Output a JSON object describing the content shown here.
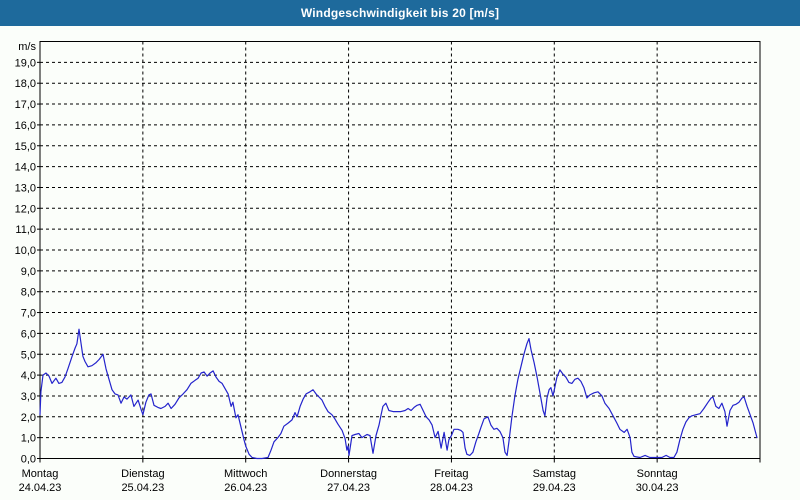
{
  "window": {
    "title": "Windgeschwindigkeit bis 20 [m/s]"
  },
  "colors": {
    "frame_blue": "#1e6a9c",
    "content_bg": "#fbfefa",
    "plot_border": "#000000",
    "grid": "#000000",
    "line": "#2424cc",
    "label_text": "#000000",
    "title_text": "#ffffff"
  },
  "chart_data": {
    "type": "line",
    "title": "Windgeschwindigkeit bis 20 [m/s]",
    "y_unit_label": "m/s",
    "ylim": [
      0,
      20
    ],
    "y_tick_step": 1,
    "y_tick_labels": [
      "19,0",
      "18,0",
      "17,0",
      "16,0",
      "15,0",
      "14,0",
      "13,0",
      "12,0",
      "11,0",
      "10,0",
      "9,0",
      "8,0",
      "7,0",
      "6,0",
      "5,0",
      "4,0",
      "3,0",
      "2,0",
      "1,0",
      "0,0"
    ],
    "x_unit": "hours_since_monday_00h",
    "xlim_hours": [
      0,
      168
    ],
    "grid": "dashed",
    "legend": "none",
    "x_day_labels": [
      {
        "name": "Montag",
        "date": "24.04.23",
        "hour": 0
      },
      {
        "name": "Dienstag",
        "date": "25.04.23",
        "hour": 24
      },
      {
        "name": "Mittwoch",
        "date": "26.04.23",
        "hour": 48
      },
      {
        "name": "Donnerstag",
        "date": "27.04.23",
        "hour": 72
      },
      {
        "name": "Freitag",
        "date": "28.04.23",
        "hour": 96
      },
      {
        "name": "Samstag",
        "date": "29.04.23",
        "hour": 120
      },
      {
        "name": "Sonntag",
        "date": "30.04.23",
        "hour": 144
      }
    ],
    "series": [
      {
        "name": "Windgeschwindigkeit [m/s]",
        "points": [
          [
            0.0,
            2.1
          ],
          [
            0.2,
            3.2
          ],
          [
            0.7,
            4.0
          ],
          [
            1.4,
            4.1
          ],
          [
            2.1,
            3.95
          ],
          [
            2.8,
            3.6
          ],
          [
            3.7,
            3.85
          ],
          [
            4.4,
            3.6
          ],
          [
            5.1,
            3.65
          ],
          [
            5.8,
            3.9
          ],
          [
            6.5,
            4.3
          ],
          [
            7.5,
            4.9
          ],
          [
            8.2,
            5.3
          ],
          [
            8.6,
            5.5
          ],
          [
            9.1,
            6.2
          ],
          [
            9.6,
            5.5
          ],
          [
            10.0,
            4.9
          ],
          [
            10.5,
            4.65
          ],
          [
            11.2,
            4.4
          ],
          [
            12.1,
            4.45
          ],
          [
            13.1,
            4.6
          ],
          [
            13.8,
            4.75
          ],
          [
            14.7,
            5.0
          ],
          [
            15.4,
            4.3
          ],
          [
            16.1,
            3.8
          ],
          [
            16.8,
            3.3
          ],
          [
            17.5,
            3.1
          ],
          [
            18.2,
            3.05
          ],
          [
            18.9,
            2.65
          ],
          [
            19.6,
            2.95
          ],
          [
            20.3,
            2.85
          ],
          [
            21.2,
            3.05
          ],
          [
            21.9,
            2.5
          ],
          [
            22.9,
            2.8
          ],
          [
            23.6,
            2.35
          ],
          [
            24.0,
            2.1
          ],
          [
            24.7,
            2.7
          ],
          [
            25.4,
            3.05
          ],
          [
            25.9,
            3.1
          ],
          [
            26.6,
            2.55
          ],
          [
            27.5,
            2.45
          ],
          [
            28.2,
            2.4
          ],
          [
            29.2,
            2.5
          ],
          [
            29.9,
            2.65
          ],
          [
            30.6,
            2.4
          ],
          [
            31.5,
            2.6
          ],
          [
            32.4,
            2.9
          ],
          [
            33.4,
            3.1
          ],
          [
            34.3,
            3.3
          ],
          [
            35.2,
            3.6
          ],
          [
            36.2,
            3.75
          ],
          [
            36.9,
            3.85
          ],
          [
            37.6,
            4.1
          ],
          [
            38.3,
            4.15
          ],
          [
            39.0,
            3.95
          ],
          [
            39.7,
            4.1
          ],
          [
            40.4,
            4.2
          ],
          [
            41.1,
            3.9
          ],
          [
            41.8,
            3.7
          ],
          [
            42.5,
            3.6
          ],
          [
            43.2,
            3.35
          ],
          [
            43.9,
            3.1
          ],
          [
            44.6,
            2.5
          ],
          [
            45.0,
            2.7
          ],
          [
            45.7,
            1.95
          ],
          [
            46.2,
            2.1
          ],
          [
            46.9,
            1.5
          ],
          [
            47.6,
            0.9
          ],
          [
            48.0,
            0.6
          ],
          [
            48.8,
            0.2
          ],
          [
            49.5,
            0.05
          ],
          [
            50.6,
            0.0
          ],
          [
            51.8,
            0.0
          ],
          [
            53.2,
            0.05
          ],
          [
            53.9,
            0.4
          ],
          [
            54.6,
            0.8
          ],
          [
            55.5,
            1.0
          ],
          [
            56.2,
            1.2
          ],
          [
            56.9,
            1.55
          ],
          [
            57.9,
            1.7
          ],
          [
            58.8,
            1.85
          ],
          [
            59.5,
            2.2
          ],
          [
            60.0,
            2.0
          ],
          [
            60.7,
            2.5
          ],
          [
            61.4,
            2.85
          ],
          [
            62.1,
            3.1
          ],
          [
            63.0,
            3.2
          ],
          [
            63.7,
            3.3
          ],
          [
            64.4,
            3.1
          ],
          [
            65.1,
            2.95
          ],
          [
            65.8,
            2.8
          ],
          [
            66.5,
            2.5
          ],
          [
            67.2,
            2.25
          ],
          [
            68.1,
            2.1
          ],
          [
            68.8,
            1.9
          ],
          [
            69.5,
            1.65
          ],
          [
            70.5,
            1.35
          ],
          [
            71.2,
            0.95
          ],
          [
            71.6,
            0.4
          ],
          [
            71.9,
            0.6
          ],
          [
            72.1,
            0.15
          ],
          [
            72.8,
            1.1
          ],
          [
            73.5,
            1.15
          ],
          [
            74.4,
            1.2
          ],
          [
            75.1,
            1.0
          ],
          [
            76.3,
            1.15
          ],
          [
            77.0,
            1.1
          ],
          [
            77.7,
            0.25
          ],
          [
            78.4,
            1.1
          ],
          [
            79.1,
            1.6
          ],
          [
            79.6,
            2.1
          ],
          [
            80.0,
            2.5
          ],
          [
            80.7,
            2.65
          ],
          [
            81.4,
            2.3
          ],
          [
            82.4,
            2.25
          ],
          [
            83.3,
            2.25
          ],
          [
            84.2,
            2.25
          ],
          [
            85.2,
            2.3
          ],
          [
            85.9,
            2.4
          ],
          [
            86.6,
            2.3
          ],
          [
            87.3,
            2.45
          ],
          [
            88.0,
            2.55
          ],
          [
            88.7,
            2.6
          ],
          [
            89.4,
            2.3
          ],
          [
            90.1,
            2.0
          ],
          [
            90.8,
            1.85
          ],
          [
            91.5,
            1.6
          ],
          [
            92.2,
            1.0
          ],
          [
            92.9,
            1.3
          ],
          [
            93.6,
            0.5
          ],
          [
            94.3,
            1.25
          ],
          [
            95.0,
            0.4
          ],
          [
            95.4,
            0.9
          ],
          [
            96.0,
            1.1
          ],
          [
            96.6,
            1.4
          ],
          [
            97.5,
            1.4
          ],
          [
            98.2,
            1.35
          ],
          [
            98.7,
            1.25
          ],
          [
            99.2,
            0.5
          ],
          [
            99.6,
            0.2
          ],
          [
            100.3,
            0.15
          ],
          [
            101.0,
            0.3
          ],
          [
            101.7,
            0.8
          ],
          [
            102.4,
            1.2
          ],
          [
            102.9,
            1.5
          ],
          [
            103.6,
            1.9
          ],
          [
            104.5,
            2.0
          ],
          [
            105.2,
            1.6
          ],
          [
            105.9,
            1.4
          ],
          [
            106.6,
            1.45
          ],
          [
            107.3,
            1.3
          ],
          [
            108.0,
            1.0
          ],
          [
            108.5,
            0.3
          ],
          [
            109.0,
            0.15
          ],
          [
            109.4,
            0.8
          ],
          [
            110.1,
            2.0
          ],
          [
            110.8,
            3.0
          ],
          [
            111.5,
            3.8
          ],
          [
            112.2,
            4.4
          ],
          [
            112.9,
            5.0
          ],
          [
            113.6,
            5.5
          ],
          [
            114.1,
            5.75
          ],
          [
            114.6,
            5.2
          ],
          [
            115.3,
            4.6
          ],
          [
            116.0,
            3.9
          ],
          [
            116.7,
            3.1
          ],
          [
            117.4,
            2.3
          ],
          [
            117.8,
            2.05
          ],
          [
            118.3,
            2.9
          ],
          [
            118.8,
            3.3
          ],
          [
            119.2,
            3.4
          ],
          [
            119.7,
            3.0
          ],
          [
            120.0,
            3.3
          ],
          [
            120.6,
            3.9
          ],
          [
            121.3,
            4.25
          ],
          [
            122.0,
            4.05
          ],
          [
            122.7,
            3.9
          ],
          [
            123.4,
            3.65
          ],
          [
            124.1,
            3.6
          ],
          [
            124.8,
            3.8
          ],
          [
            125.5,
            3.85
          ],
          [
            126.2,
            3.7
          ],
          [
            126.9,
            3.4
          ],
          [
            127.6,
            2.9
          ],
          [
            128.3,
            3.05
          ],
          [
            129.3,
            3.15
          ],
          [
            130.2,
            3.2
          ],
          [
            131.1,
            3.0
          ],
          [
            131.8,
            2.65
          ],
          [
            132.8,
            2.4
          ],
          [
            133.7,
            2.05
          ],
          [
            134.6,
            1.7
          ],
          [
            135.3,
            1.4
          ],
          [
            136.3,
            1.25
          ],
          [
            137.0,
            1.4
          ],
          [
            137.7,
            1.0
          ],
          [
            138.1,
            0.3
          ],
          [
            138.6,
            0.1
          ],
          [
            140.0,
            0.05
          ],
          [
            141.2,
            0.15
          ],
          [
            142.3,
            0.05
          ],
          [
            144.0,
            0.05
          ],
          [
            145.1,
            0.05
          ],
          [
            146.1,
            0.15
          ],
          [
            147.0,
            0.05
          ],
          [
            147.9,
            0.05
          ],
          [
            148.6,
            0.3
          ],
          [
            149.3,
            0.9
          ],
          [
            150.0,
            1.4
          ],
          [
            150.7,
            1.75
          ],
          [
            151.4,
            1.95
          ],
          [
            152.1,
            2.05
          ],
          [
            153.1,
            2.1
          ],
          [
            154.0,
            2.15
          ],
          [
            154.9,
            2.4
          ],
          [
            155.9,
            2.7
          ],
          [
            156.6,
            2.9
          ],
          [
            157.0,
            2.95
          ],
          [
            157.7,
            2.5
          ],
          [
            158.4,
            2.4
          ],
          [
            159.1,
            2.65
          ],
          [
            159.8,
            2.25
          ],
          [
            160.3,
            1.55
          ],
          [
            161.0,
            2.3
          ],
          [
            161.7,
            2.55
          ],
          [
            162.4,
            2.6
          ],
          [
            163.1,
            2.7
          ],
          [
            163.8,
            2.9
          ],
          [
            164.3,
            2.95
          ],
          [
            165.0,
            2.5
          ],
          [
            165.7,
            2.1
          ],
          [
            166.4,
            1.7
          ],
          [
            166.9,
            1.3
          ],
          [
            167.3,
            1.0
          ]
        ]
      }
    ]
  }
}
